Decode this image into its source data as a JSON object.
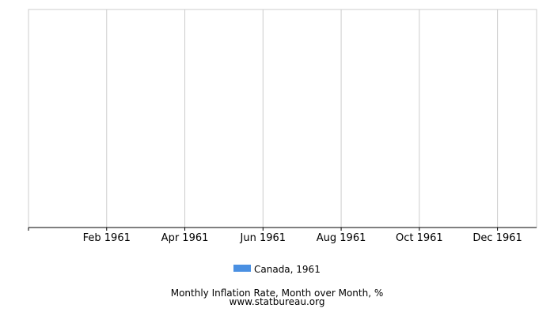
{
  "chart_data": {
    "type": "line",
    "title": "Monthly Inflation Rate, Month over Month, %",
    "source": "www.statbureau.org",
    "xlim": [
      0,
      13
    ],
    "xticks": [
      {
        "value": 2,
        "label": "Feb 1961"
      },
      {
        "value": 4,
        "label": "Apr 1961"
      },
      {
        "value": 6,
        "label": "Jun 1961"
      },
      {
        "value": 8,
        "label": "Aug 1961"
      },
      {
        "value": 10,
        "label": "Oct 1961"
      },
      {
        "value": 12,
        "label": "Dec 1961"
      }
    ],
    "grid": true,
    "series": [
      {
        "name": "Canada, 1961",
        "color": "#4a90e2",
        "x": [],
        "values": []
      }
    ]
  }
}
